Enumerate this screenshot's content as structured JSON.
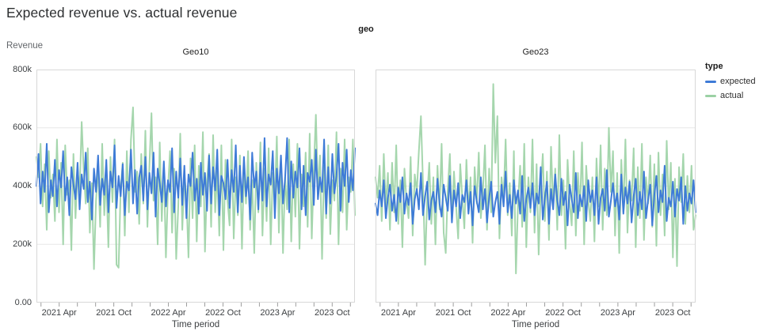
{
  "header": {
    "title": "Expected revenue vs. actual revenue"
  },
  "chart": {
    "facet_label": "geo",
    "y_axis_title": "Revenue",
    "x_axis_title": "Time period"
  },
  "colors": {
    "expected": "#3e7bd7",
    "actual": "#9bd1a4",
    "grid": "#e8e8e8",
    "border": "#d8d8d8",
    "tick": "#9e9e9e"
  },
  "chart_data": {
    "type": "line",
    "title": "Expected revenue vs. actual revenue",
    "xlabel": "Time period",
    "ylabel": "Revenue",
    "facet_field": "geo",
    "unit": "thousands (k) of revenue; cadence approx. weekly Jan 2021 - Dec 2023",
    "y_domain": [
      0,
      800
    ],
    "y_ticks": [
      {
        "value": 800,
        "label": "800k"
      },
      {
        "value": 600,
        "label": "600k"
      },
      {
        "value": 400,
        "label": "400k"
      },
      {
        "value": 200,
        "label": "200k"
      },
      {
        "value": 0,
        "label": "0.00"
      }
    ],
    "x_ticks": [
      {
        "m": 1
      },
      {
        "m": 3,
        "label": "2021 Apr"
      },
      {
        "m": 5
      },
      {
        "m": 7
      },
      {
        "m": 9,
        "label": "2021 Oct"
      },
      {
        "m": 11
      },
      {
        "m": 13
      },
      {
        "m": 15,
        "label": "2022 Apr"
      },
      {
        "m": 17
      },
      {
        "m": 19
      },
      {
        "m": 21,
        "label": "2022 Oct"
      },
      {
        "m": 23
      },
      {
        "m": 25
      },
      {
        "m": 27,
        "label": "2023 Apr"
      },
      {
        "m": 29
      },
      {
        "m": 31
      },
      {
        "m": 33,
        "label": "2023 Oct"
      },
      {
        "m": 35
      }
    ],
    "legend": {
      "title": "type",
      "items": [
        {
          "label": "expected",
          "color": "#3e7bd7"
        },
        {
          "label": "actual",
          "color": "#9bd1a4"
        }
      ]
    },
    "facets": [
      {
        "title": "Geo10",
        "series": [
          {
            "name": "expected",
            "color": "#3e7bd7",
            "opacity": 1,
            "values": [
              400,
              510,
              340,
              450,
              380,
              545,
              310,
              420,
              365,
              490,
              330,
              455,
              395,
              520,
              350,
              430,
              300,
              465,
              405,
              355,
              480,
              320,
              440,
              390,
              515,
              345,
              415,
              285,
              460,
              380,
              505,
              335,
              425,
              370,
              490,
              310,
              450,
              395,
              540,
              325,
              435,
              365,
              475,
              300,
              415,
              385,
              525,
              340,
              455,
              305,
              430,
              470,
              350,
              500,
              320,
              445,
              375,
              515,
              295,
              460,
              410,
              345,
              485,
              330,
              420,
              380,
              530,
              310,
              450,
              360,
              495,
              335,
              470,
              290,
              440,
              400,
              515,
              350,
              425,
              305,
              480,
              370,
              445,
              315,
              505,
              340,
              465,
              385,
              525,
              300,
              435,
              410,
              355,
              490,
              325,
              455,
              380,
              540,
              310,
              470,
              345,
              500,
              365,
              430,
              285,
              515,
              395,
              450,
              320,
              480,
              350,
              565,
              330,
              440,
              405,
              520,
              290,
              460,
              375,
              505,
              340,
              425,
              565,
              310,
              485,
              360,
              450,
              395,
              530,
              320,
              470,
              300,
              445,
              415,
              490,
              335,
              525,
              355,
              430,
              380,
              560,
              305,
              465,
              340,
              510,
              375,
              435,
              545,
              315,
              480,
              400,
              525,
              345,
              455,
              385,
              530
            ]
          },
          {
            "name": "actual",
            "color": "#9bd1a4",
            "opacity": 0.9,
            "values": [
              500,
              430,
              545,
              330,
              475,
              250,
              520,
              360,
              440,
              280,
              560,
              310,
              480,
              200,
              540,
              370,
              420,
              180,
              510,
              290,
              455,
              380,
              620,
              450,
              340,
              530,
              240,
              410,
              115,
              350,
              470,
              260,
              545,
              300,
              430,
              190,
              500,
              345,
              560,
              130,
              120,
              390,
              480,
              230,
              520,
              310,
              560,
              670,
              380,
              450,
              270,
              510,
              340,
              590,
              260,
              470,
              650,
              350,
              430,
              200,
              550,
              280,
              475,
              155,
              390,
              520,
              240,
              460,
              150,
              330,
              580,
              250,
              440,
              365,
              155,
              495,
              290,
              540,
              210,
              470,
              330,
              585,
              175,
              420,
              510,
              260,
              575,
              310,
              450,
              230,
              540,
              180,
              490,
              350,
              265,
              560,
              220,
              430,
              300,
              505,
              185,
              465,
              340,
              520,
              250,
              420,
              170,
              480,
              310,
              550,
              230,
              460,
              280,
              530,
              200,
              445,
              360,
              570,
              240,
              490,
              170,
              430,
              320,
              560,
              210,
              475,
              295,
              545,
              185,
              440,
              330,
              515,
              260,
              580,
              220,
              455,
              645,
              380,
              505,
              150,
              470,
              290,
              540,
              235,
              420,
              350,
              585,
              200,
              460,
              310,
              560,
              250,
              430,
              380,
              560,
              300
            ]
          }
        ]
      },
      {
        "title": "Geo23",
        "series": [
          {
            "name": "expected",
            "color": "#3e7bd7",
            "opacity": 1,
            "values": [
              340,
              300,
              385,
              330,
              420,
              290,
              360,
              405,
              315,
              370,
              280,
              395,
              345,
              430,
              305,
              375,
              335,
              410,
              270,
              355,
              390,
              320,
              445,
              300,
              365,
              415,
              285,
              350,
              380,
              310,
              425,
              340,
              295,
              405,
              360,
              315,
              435,
              275,
              385,
              330,
              410,
              290,
              370,
              345,
              420,
              305,
              380,
              265,
              400,
              350,
              310,
              430,
              320,
              390,
              275,
              360,
              415,
              295,
              345,
              380,
              270,
              405,
              330,
              450,
              310,
              370,
              290,
              420,
              340,
              385,
              305,
              435,
              280,
              355,
              395,
              325,
              410,
              300,
              375,
              340,
              465,
              285,
              360,
              415,
              270,
              390,
              320,
              440,
              350,
              300,
              425,
              335,
              380,
              265,
              405,
              355,
              310,
              445,
              290,
              370,
              330,
              400,
              280,
              420,
              345,
              385,
              300,
              430,
              270,
              360,
              390,
              315,
              455,
              295,
              350,
              410,
              330,
              375,
              285,
              440,
              305,
              395,
              340,
              415,
              275,
              365,
              425,
              300,
              380,
              320,
              450,
              290,
              355,
              405,
              265,
              370,
              435,
              310,
              385,
              345,
              470,
              280,
              360,
              330,
              415,
              295,
              390,
              350,
              430,
              270,
              400,
              315,
              375,
              340,
              420,
              310
            ]
          },
          {
            "name": "actual",
            "color": "#9bd1a4",
            "opacity": 0.9,
            "values": [
              430,
              360,
              470,
              280,
              510,
              330,
              445,
              250,
              480,
              310,
              540,
              270,
              420,
              190,
              460,
              350,
              290,
              500,
              230,
              440,
              380,
              520,
              640,
              410,
              130,
              360,
              480,
              270,
              430,
              200,
              470,
              320,
              545,
              240,
              170,
              390,
              510,
              280,
              450,
              330,
              220,
              475,
              360,
              255,
              490,
              310,
              430,
              205,
              465,
              340,
              515,
              290,
              380,
              540,
              250,
              460,
              310,
              750,
              480,
              640,
              220,
              430,
              355,
              560,
              300,
              410,
              230,
              520,
              100,
              340,
              470,
              260,
              545,
              190,
              430,
              310,
              560,
              240,
              475,
              165,
              390,
              510,
              280,
              450,
              215,
              535,
              330,
              460,
              250,
              575,
              300,
              420,
              185,
              490,
              345,
              265,
              520,
              230,
              445,
              315,
              550,
              200,
              470,
              350,
              280,
              430,
              210,
              495,
              330,
              540,
              250,
              460,
              300,
              600,
              380,
              520,
              230,
              445,
              170,
              490,
              310,
              560,
              240,
              420,
              350,
              530,
              190,
              465,
              290,
              545,
              215,
              430,
              340,
              505,
              260,
              475,
              195,
              515,
              300,
              440,
              230,
              555,
              320,
              480,
              155,
              425,
              125,
              465,
              345,
              510,
              270,
              435,
              310,
              470,
              250,
              300
            ]
          }
        ]
      }
    ]
  }
}
